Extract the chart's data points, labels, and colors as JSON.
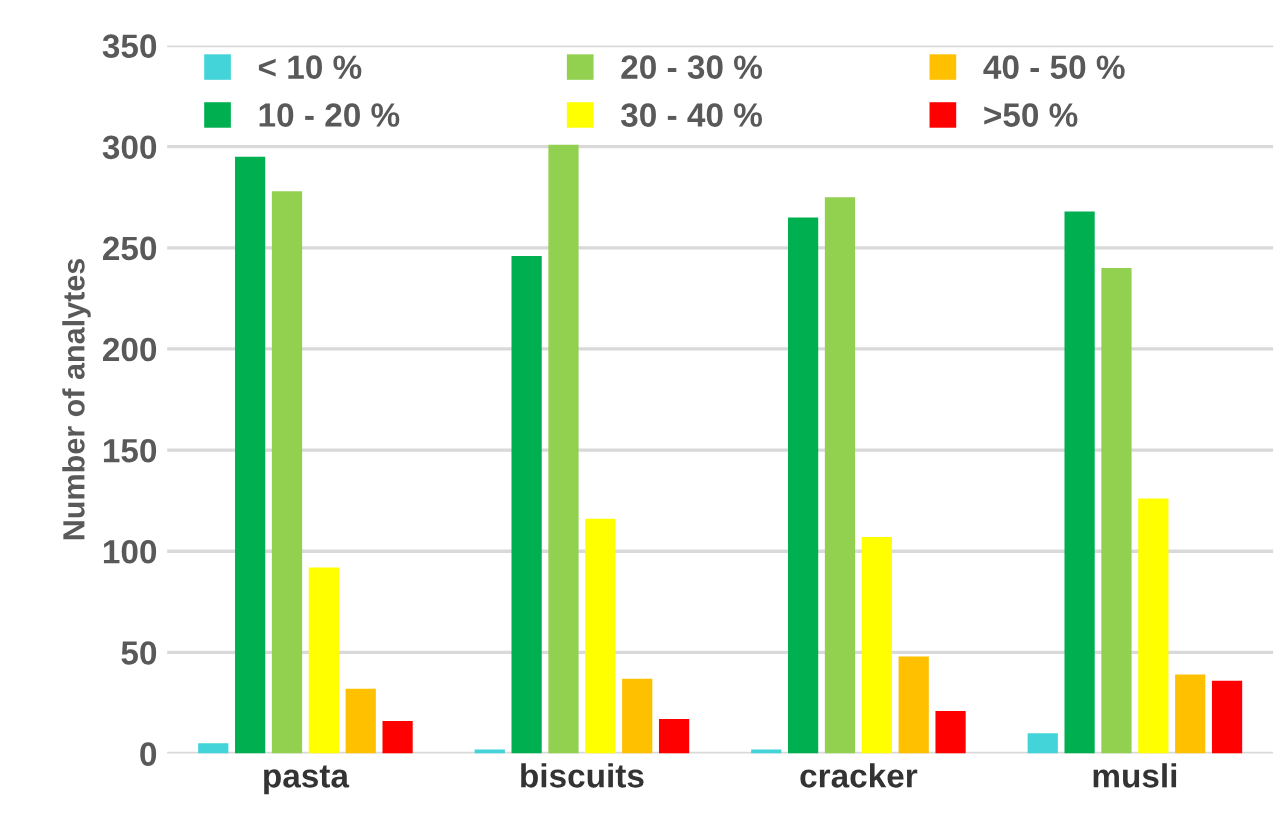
{
  "chart_data": {
    "type": "bar",
    "ylabel": "Number of analytes",
    "categories": [
      "pasta",
      "biscuits",
      "cracker",
      "musli"
    ],
    "series": [
      {
        "name": "< 10 %",
        "color": "#42d4d8",
        "values": [
          5,
          2,
          2,
          10
        ]
      },
      {
        "name": "10 - 20 %",
        "color": "#00b050",
        "values": [
          295,
          246,
          265,
          268
        ]
      },
      {
        "name": "20 - 30 %",
        "color": "#92d050",
        "values": [
          278,
          301,
          275,
          240
        ]
      },
      {
        "name": "30 - 40 %",
        "color": "#ffff00",
        "values": [
          92,
          116,
          107,
          126
        ]
      },
      {
        "name": "40 - 50 %",
        "color": "#ffc000",
        "values": [
          32,
          37,
          48,
          39
        ]
      },
      {
        "name": ">50 %",
        "color": "#ff0000",
        "values": [
          16,
          17,
          21,
          36
        ]
      }
    ],
    "ylim": [
      0,
      350
    ],
    "yticks": [
      0,
      50,
      100,
      150,
      200,
      250,
      300,
      350
    ],
    "grid": "y",
    "legend": "top"
  }
}
